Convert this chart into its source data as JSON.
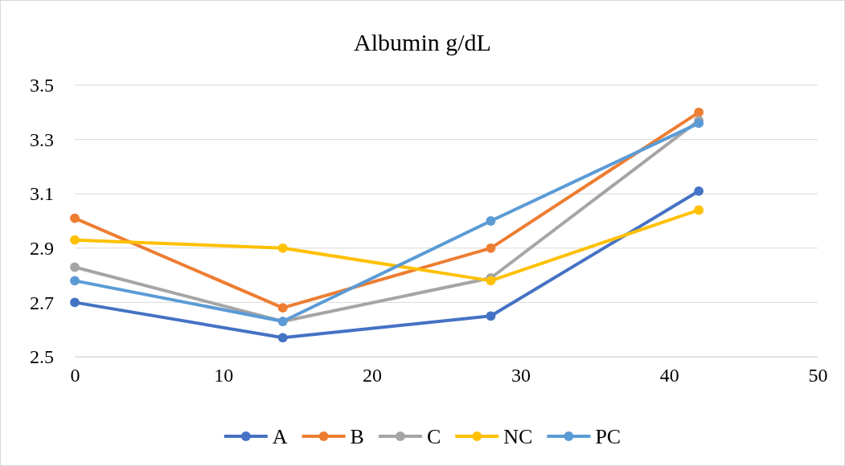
{
  "chart_data": {
    "type": "line",
    "title": "Albumin g/dL",
    "x": [
      0,
      14,
      28,
      42
    ],
    "xlim": [
      0,
      50
    ],
    "xticks": [
      0,
      10,
      20,
      30,
      40,
      50
    ],
    "ylim": [
      2.5,
      3.5
    ],
    "yticks": [
      {
        "value": 2.5,
        "label": "2.5"
      },
      {
        "value": 2.7,
        "label": "2.7"
      },
      {
        "value": 2.9,
        "label": "2.9"
      },
      {
        "value": 3.1,
        "label": "3.1"
      },
      {
        "value": 3.3,
        "label": "3.3"
      },
      {
        "value": 3.5,
        "label": "3.5"
      }
    ],
    "grid": "y",
    "legend": "bottom",
    "marker": "circle",
    "line_style": "solid",
    "series": [
      {
        "name": "A",
        "color": "#4472c4",
        "values": [
          2.7,
          2.57,
          2.65,
          3.11
        ]
      },
      {
        "name": "B",
        "color": "#ed7d31",
        "values": [
          3.01,
          2.68,
          2.9,
          3.4
        ]
      },
      {
        "name": "C",
        "color": "#a5a5a5",
        "values": [
          2.83,
          2.63,
          2.79,
          3.37
        ]
      },
      {
        "name": "NC",
        "color": "#ffc000",
        "values": [
          2.93,
          2.9,
          2.78,
          3.04
        ]
      },
      {
        "name": "PC",
        "color": "#5b9bd5",
        "values": [
          2.78,
          2.63,
          3.0,
          3.36
        ]
      }
    ]
  }
}
